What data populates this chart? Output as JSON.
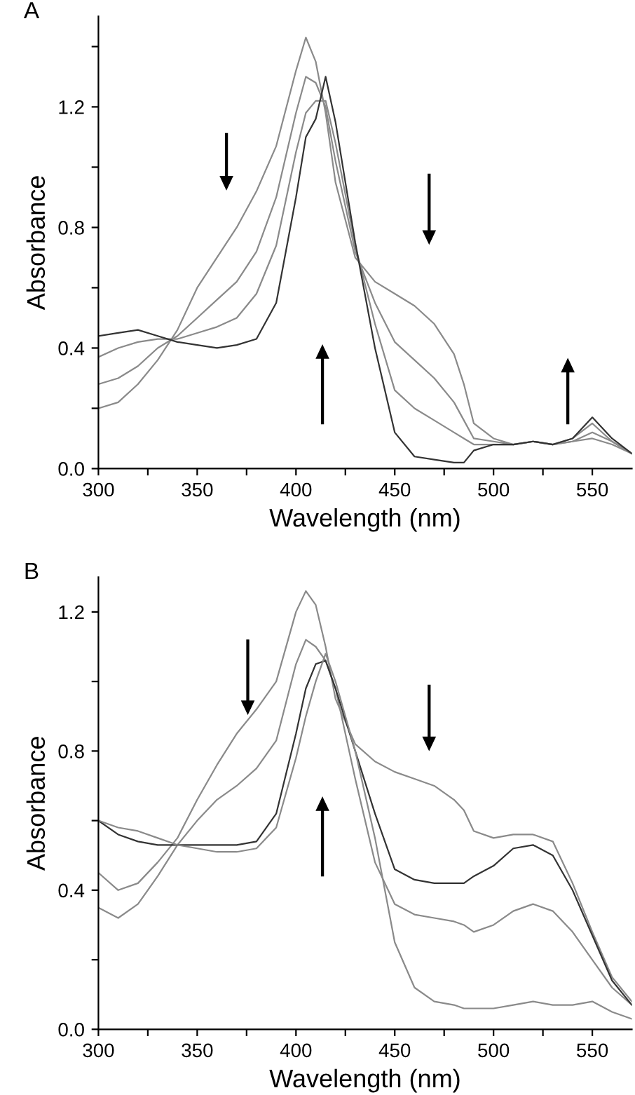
{
  "chart_data": [
    {
      "type": "line",
      "title": "A",
      "xlabel": "Wavelength (nm)",
      "ylabel": "Absorbance",
      "xlim": [
        300,
        570
      ],
      "ylim": [
        0,
        1.5
      ],
      "xticks": [
        300,
        {
          "value": 325,
          "label": null
        },
        350,
        {
          "value": 375,
          "label": null
        },
        400,
        {
          "value": 425,
          "label": null
        },
        450,
        {
          "value": 475,
          "label": null
        },
        500,
        {
          "value": 525,
          "label": null
        },
        550
      ],
      "yticks": [
        "0.0",
        {
          "value": 0.2,
          "label": null
        },
        {
          "value": 0.4,
          "label": "0.4"
        },
        {
          "value": 0.6,
          "label": null
        },
        {
          "value": 0.8,
          "label": "0.8"
        },
        {
          "value": 1.0,
          "label": null
        },
        {
          "value": 1.2,
          "label": "1.2"
        },
        {
          "value": 1.4,
          "label": null
        }
      ],
      "grid": false,
      "legend": false,
      "line_style": "solid",
      "marker": "none",
      "x": [
        300,
        310,
        320,
        330,
        340,
        350,
        360,
        370,
        380,
        390,
        400,
        405,
        410,
        415,
        420,
        430,
        440,
        450,
        460,
        470,
        480,
        485,
        490,
        500,
        510,
        520,
        530,
        540,
        550,
        560,
        570
      ],
      "series": [
        {
          "color": "#8a8a8a",
          "values": [
            0.2,
            0.22,
            0.28,
            0.36,
            0.46,
            0.6,
            0.7,
            0.8,
            0.92,
            1.07,
            1.32,
            1.43,
            1.35,
            1.18,
            0.95,
            0.7,
            0.62,
            0.58,
            0.54,
            0.48,
            0.38,
            0.28,
            0.15,
            0.1,
            0.08,
            0.09,
            0.08,
            0.09,
            0.1,
            0.08,
            0.05
          ]
        },
        {
          "color": "#8a8a8a",
          "values": [
            0.28,
            0.3,
            0.34,
            0.4,
            0.44,
            0.5,
            0.56,
            0.62,
            0.72,
            0.9,
            1.18,
            1.3,
            1.28,
            1.2,
            1.02,
            0.72,
            0.55,
            0.42,
            0.36,
            0.3,
            0.22,
            0.16,
            0.1,
            0.09,
            0.08,
            0.09,
            0.08,
            0.09,
            0.12,
            0.09,
            0.05
          ]
        },
        {
          "color": "#8a8a8a",
          "values": [
            0.37,
            0.4,
            0.42,
            0.43,
            0.43,
            0.45,
            0.47,
            0.5,
            0.58,
            0.74,
            1.05,
            1.18,
            1.22,
            1.22,
            1.08,
            0.74,
            0.48,
            0.26,
            0.2,
            0.16,
            0.12,
            0.1,
            0.08,
            0.08,
            0.08,
            0.09,
            0.08,
            0.1,
            0.15,
            0.09,
            0.05
          ]
        },
        {
          "color": "#333333",
          "values": [
            0.44,
            0.45,
            0.46,
            0.44,
            0.42,
            0.41,
            0.4,
            0.41,
            0.43,
            0.55,
            0.9,
            1.1,
            1.16,
            1.3,
            1.15,
            0.75,
            0.4,
            0.12,
            0.04,
            0.03,
            0.02,
            0.02,
            0.06,
            0.08,
            0.08,
            0.09,
            0.08,
            0.1,
            0.17,
            0.1,
            0.05
          ]
        }
      ]
    },
    {
      "type": "line",
      "title": "B",
      "xlabel": "Wavelength (nm)",
      "ylabel": "Absorbance",
      "xlim": [
        300,
        570
      ],
      "ylim": [
        0,
        1.3
      ],
      "xticks": [
        300,
        {
          "value": 325,
          "label": null
        },
        350,
        {
          "value": 375,
          "label": null
        },
        400,
        {
          "value": 425,
          "label": null
        },
        450,
        {
          "value": 475,
          "label": null
        },
        500,
        {
          "value": 525,
          "label": null
        },
        550
      ],
      "yticks": [
        "0.0",
        {
          "value": 0.2,
          "label": null
        },
        {
          "value": 0.4,
          "label": "0.4"
        },
        {
          "value": 0.6,
          "label": null
        },
        {
          "value": 0.8,
          "label": "0.8"
        },
        {
          "value": 1.0,
          "label": null
        },
        {
          "value": 1.2,
          "label": "1.2"
        }
      ],
      "grid": false,
      "legend": false,
      "line_style": "solid",
      "marker": "none",
      "x": [
        300,
        310,
        320,
        330,
        340,
        350,
        360,
        370,
        380,
        390,
        400,
        405,
        410,
        415,
        420,
        430,
        440,
        450,
        460,
        470,
        480,
        485,
        490,
        500,
        510,
        520,
        530,
        540,
        550,
        560,
        570
      ],
      "series": [
        {
          "color": "#8a8a8a",
          "values": [
            0.45,
            0.4,
            0.42,
            0.48,
            0.55,
            0.66,
            0.76,
            0.85,
            0.92,
            1.0,
            1.2,
            1.26,
            1.22,
            1.1,
            0.95,
            0.82,
            0.77,
            0.74,
            0.72,
            0.7,
            0.66,
            0.63,
            0.57,
            0.55,
            0.56,
            0.56,
            0.54,
            0.42,
            0.28,
            0.15,
            0.08
          ]
        },
        {
          "color": "#8a8a8a",
          "values": [
            0.35,
            0.32,
            0.36,
            0.44,
            0.53,
            0.6,
            0.66,
            0.7,
            0.75,
            0.83,
            1.05,
            1.12,
            1.1,
            1.06,
            0.98,
            0.72,
            0.48,
            0.36,
            0.33,
            0.32,
            0.31,
            0.3,
            0.28,
            0.3,
            0.34,
            0.36,
            0.34,
            0.28,
            0.2,
            0.12,
            0.07
          ]
        },
        {
          "color": "#333333",
          "values": [
            0.6,
            0.56,
            0.54,
            0.53,
            0.53,
            0.53,
            0.53,
            0.53,
            0.54,
            0.62,
            0.85,
            0.98,
            1.05,
            1.06,
            0.98,
            0.8,
            0.62,
            0.46,
            0.43,
            0.42,
            0.42,
            0.42,
            0.44,
            0.47,
            0.52,
            0.53,
            0.5,
            0.4,
            0.27,
            0.14,
            0.07
          ]
        },
        {
          "color": "#8a8a8a",
          "values": [
            0.6,
            0.58,
            0.57,
            0.55,
            0.53,
            0.52,
            0.51,
            0.51,
            0.52,
            0.58,
            0.78,
            0.9,
            1.0,
            1.08,
            1.0,
            0.8,
            0.55,
            0.25,
            0.12,
            0.08,
            0.07,
            0.06,
            0.06,
            0.06,
            0.07,
            0.08,
            0.07,
            0.07,
            0.08,
            0.05,
            0.03
          ]
        }
      ]
    }
  ]
}
